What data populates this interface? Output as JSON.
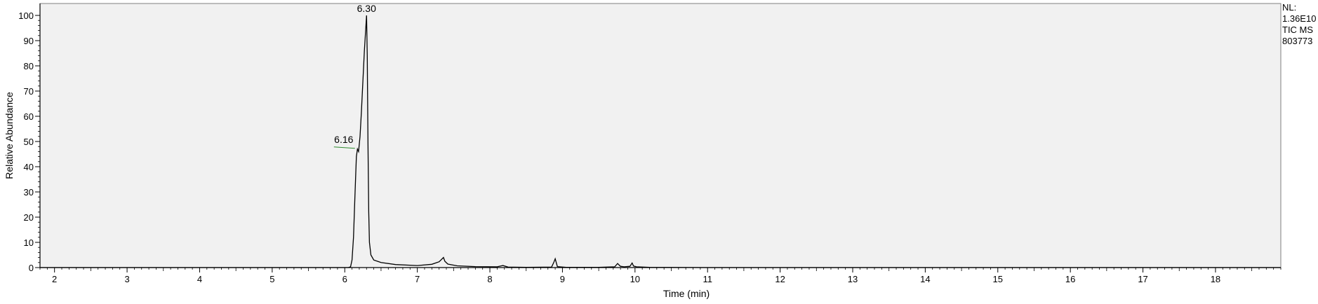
{
  "chart_data": {
    "type": "line",
    "xlabel": "Time (min)",
    "ylabel": "Relative Abundance",
    "xlim": [
      1.8,
      18.9
    ],
    "ylim": [
      0,
      100
    ],
    "x_ticks": [
      2,
      3,
      4,
      5,
      6,
      7,
      8,
      9,
      10,
      11,
      12,
      13,
      14,
      15,
      16,
      17,
      18
    ],
    "y_ticks": [
      0,
      10,
      20,
      30,
      40,
      50,
      60,
      70,
      80,
      90,
      100
    ],
    "grid": false,
    "plot_background": "#f1f1f1",
    "line_color": "#000000",
    "series": [
      {
        "x": [
          1.8,
          6.05,
          6.08,
          6.1,
          6.12,
          6.14,
          6.16,
          6.175,
          6.19,
          6.21,
          6.23,
          6.25,
          6.27,
          6.29,
          6.3,
          6.31,
          6.32,
          6.33,
          6.34,
          6.36,
          6.4,
          6.5,
          6.7,
          7.0,
          7.2,
          7.3,
          7.36,
          7.38,
          7.42,
          7.55,
          7.8,
          8.1,
          8.18,
          8.25,
          8.5,
          8.85,
          8.88,
          8.9,
          8.93,
          9.05,
          9.5,
          9.72,
          9.76,
          9.8,
          9.85,
          9.93,
          9.96,
          9.98,
          10.02,
          10.2,
          11.0,
          18.9
        ],
        "y": [
          0,
          0,
          0.3,
          3,
          12,
          28,
          44,
          47,
          46,
          52,
          62,
          74,
          86,
          95,
          100,
          84,
          50,
          22,
          10,
          5,
          3,
          2,
          1.2,
          0.8,
          1.3,
          2.3,
          4,
          2.5,
          1.4,
          0.7,
          0.4,
          0.3,
          0.8,
          0.2,
          0.1,
          0.2,
          2,
          3.5,
          0.4,
          0.1,
          0.1,
          0.3,
          1.6,
          0.5,
          0.3,
          0.5,
          1.8,
          0.6,
          0.3,
          0.1,
          0,
          0
        ]
      }
    ],
    "annotations": [
      {
        "text": "6.30",
        "x": 6.3,
        "y": 100
      },
      {
        "text": "6.16",
        "x": 6.16,
        "y": 47
      }
    ],
    "info_box": [
      "NL:",
      "1.36E10",
      "TIC  MS",
      "803773"
    ]
  }
}
